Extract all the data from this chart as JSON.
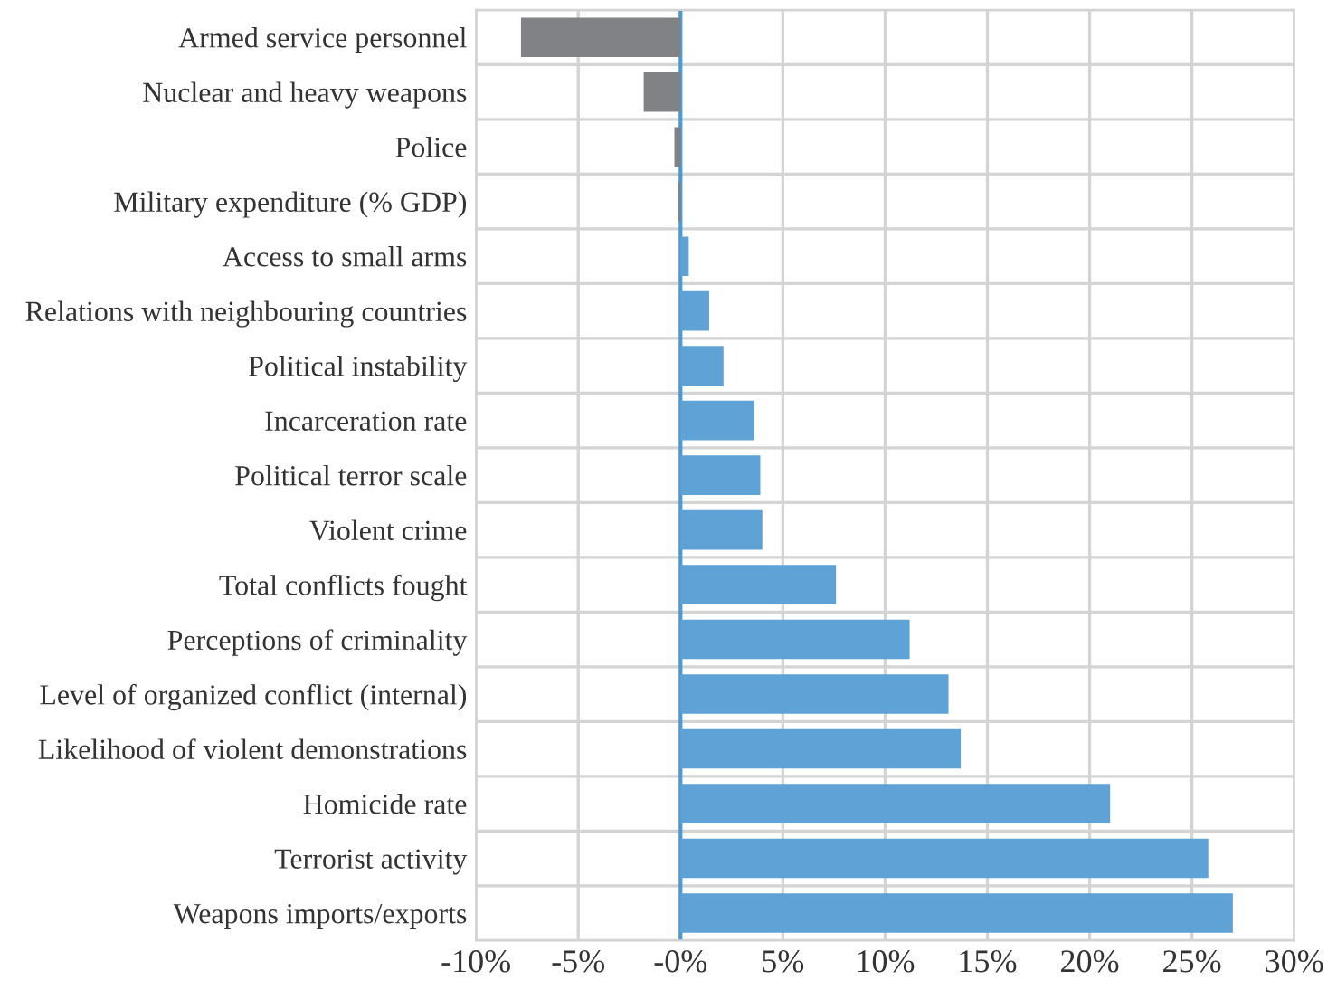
{
  "chart_data": {
    "type": "bar",
    "orientation": "horizontal",
    "categories": [
      "Armed service personnel",
      "Nuclear and heavy weapons",
      "Police",
      "Military expenditure (% GDP)",
      "Access to small arms",
      "Relations with neighbouring countries",
      "Political instability",
      "Incarceration rate",
      "Political terror scale",
      "Violent crime",
      "Total conflicts fought",
      "Perceptions of criminality",
      "Level of organized conflict (internal)",
      "Likelihood of violent demonstrations",
      "Homicide rate",
      "Terrorist activity",
      "Weapons imports/exports"
    ],
    "values": [
      -7.8,
      -1.8,
      -0.3,
      -0.1,
      0.4,
      1.4,
      2.1,
      3.6,
      3.9,
      4.0,
      7.6,
      11.2,
      13.1,
      13.7,
      21.0,
      25.8,
      27.0
    ],
    "colors": [
      "#808285",
      "#808285",
      "#808285",
      "#808285",
      "#5fa2d6",
      "#5fa2d6",
      "#5fa2d6",
      "#5fa2d6",
      "#5fa2d6",
      "#5fa2d6",
      "#5fa2d6",
      "#5fa2d6",
      "#5fa2d6",
      "#5fa2d6",
      "#5fa2d6",
      "#5fa2d6",
      "#5fa2d6"
    ],
    "xlim": [
      -10,
      30
    ],
    "xticks": [
      {
        "value": -10,
        "label": "-10%"
      },
      {
        "value": -5,
        "label": "-5%"
      },
      {
        "value": 0,
        "label": "-0%"
      },
      {
        "value": 5,
        "label": "5%"
      },
      {
        "value": 10,
        "label": "10%"
      },
      {
        "value": 15,
        "label": "15%"
      },
      {
        "value": 20,
        "label": "20%"
      },
      {
        "value": 25,
        "label": "25%"
      },
      {
        "value": 30,
        "label": "30%"
      }
    ],
    "ref_lines": [
      {
        "axis": "x",
        "value": 0,
        "color": "#4a9bd1"
      }
    ],
    "grid": true
  }
}
